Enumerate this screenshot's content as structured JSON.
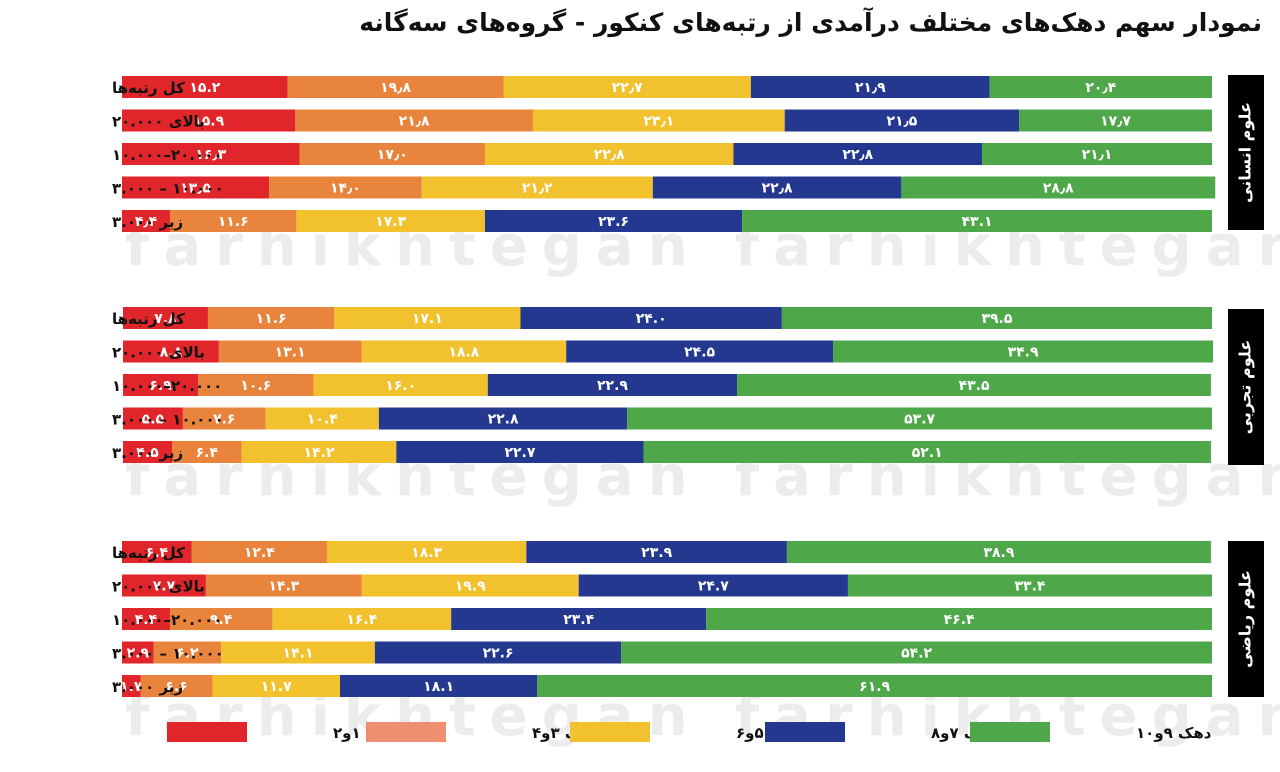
{
  "title": "نمودار سهم دهک‌های مختلف درآمدی از رتبه‌های کنکور - گروه‌های سه‌گانه",
  "watermark": "farhikhtegan",
  "colors": {
    "d12": "#e0262b",
    "d34": "#e8843c",
    "d56": "#f2c12e",
    "d78": "#24388f",
    "d910": "#4ea84a",
    "legend_d34": "#ef8f6f",
    "group_bg": "#000000"
  },
  "legend": [
    "دهک ۱و۲",
    "دهک ۳و۴",
    "دهک ۵و۶",
    "دهک ۷و۸",
    "دهک ۹و۱۰"
  ],
  "chart_data": {
    "type": "bar",
    "stacked": true,
    "orientation": "horizontal",
    "scale": "100%",
    "series_names": [
      "دهک ۱و۲",
      "دهک ۳و۴",
      "دهک ۵و۶",
      "دهک ۷و۸",
      "دهک ۹و۱۰"
    ],
    "groups": [
      {
        "name": "علوم انسانی",
        "rows": [
          {
            "label": "کل رتبه‌ها",
            "values": [
              15.2,
              19.8,
              22.7,
              21.9,
              20.4
            ],
            "texts": [
              "۱۵.۲",
              "۱۹٫۸",
              "۲۲٫۷",
              "۲۱٫۹",
              "۲۰٫۴"
            ]
          },
          {
            "label": "بالای ۲۰.۰۰۰",
            "values": [
              15.9,
              21.8,
              23.1,
              21.5,
              17.7
            ],
            "texts": [
              "۱۵.۹",
              "۲۱٫۸",
              "۲۳٫۱",
              "۲۱٫۵",
              "۱۷٫۷"
            ]
          },
          {
            "label": "۲۰.۰۰۰–۱۰.۰۰۰",
            "values": [
              16.3,
              17.0,
              22.8,
              22.8,
              21.1
            ],
            "texts": [
              "۱۶٫۳",
              "۱۷٫۰",
              "۲۲٫۸",
              "۲۲٫۸",
              "۲۱٫۱"
            ]
          },
          {
            "label": "۱۰.۰۰۰ – ۳.۰۰۰",
            "values": [
              13.5,
              14.0,
              21.2,
              22.8,
              28.8
            ],
            "texts": [
              "۱۳٫۵",
              "۱۴٫۰",
              "۲۱٫۲",
              "۲۲٫۸",
              "۲۸٫۸"
            ]
          },
          {
            "label": "زیر ۳.۰۰۰",
            "values": [
              4.4,
              11.6,
              17.3,
              23.6,
              43.1
            ],
            "texts": [
              "۴٫۴",
              "۱۱.۶",
              "۱۷.۳",
              "۲۳.۶",
              "۴۳.۱"
            ]
          }
        ]
      },
      {
        "name": "علوم تجربی",
        "rows": [
          {
            "label": "کل رتبه‌ها",
            "values": [
              7.8,
              11.6,
              17.1,
              24.0,
              39.5
            ],
            "texts": [
              "۷.۸",
              "۱۱.۶",
              "۱۷.۱",
              "۲۴.۰",
              "۳۹.۵"
            ]
          },
          {
            "label": "بالای ۲۰.۰۰۰",
            "values": [
              8.8,
              13.1,
              18.8,
              24.5,
              34.9
            ],
            "texts": [
              "۸.۸",
              "۱۳.۱",
              "۱۸.۸",
              "۲۴.۵",
              "۳۴.۹"
            ]
          },
          {
            "label": "۲۰.۰۰۰–۱۰.۰۰۰",
            "values": [
              6.9,
              10.6,
              16.0,
              22.9,
              43.5
            ],
            "texts": [
              "۶.۹",
              "۱۰.۶",
              "۱۶.۰",
              "۲۲.۹",
              "۴۳.۵"
            ]
          },
          {
            "label": "۱۰.۰۰۰ – ۳.۰۰۰",
            "values": [
              5.5,
              7.6,
              10.4,
              22.8,
              53.7
            ],
            "texts": [
              "۵.۵",
              "۷.۶",
              "۱۰.۴",
              "۲۲.۸",
              "۵۳.۷"
            ]
          },
          {
            "label": "زیر ۳.۰۰۰",
            "values": [
              4.5,
              6.4,
              14.2,
              22.7,
              52.1
            ],
            "texts": [
              "۴.۵",
              "۶.۴",
              "۱۴.۲",
              "۲۲.۷",
              "۵۲.۱"
            ]
          }
        ]
      },
      {
        "name": "علوم ریاضی",
        "rows": [
          {
            "label": "کل رتبه‌ها",
            "values": [
              6.4,
              12.4,
              18.3,
              23.9,
              38.9
            ],
            "texts": [
              "۶.۴",
              "۱۲.۴",
              "۱۸.۳",
              "۲۳.۹",
              "۳۸.۹"
            ]
          },
          {
            "label": "بالای ۲۰.۰۰۰",
            "values": [
              7.7,
              14.3,
              19.9,
              24.7,
              33.4
            ],
            "texts": [
              "۷.۷",
              "۱۴.۳",
              "۱۹.۹",
              "۲۴.۷",
              "۳۳.۴"
            ]
          },
          {
            "label": "۲۰.۰۰۰–۱۰.۰۰۰",
            "values": [
              4.4,
              9.4,
              16.4,
              23.4,
              46.4
            ],
            "texts": [
              "۴.۴",
              "۹.۴",
              "۱۶.۴",
              "۲۳.۴",
              "۴۶.۴"
            ]
          },
          {
            "label": "۱۰.۰۰۰ – ۳.۰۰۰",
            "values": [
              2.9,
              6.2,
              14.1,
              22.6,
              54.2
            ],
            "texts": [
              "۲.۹",
              "۶.۲",
              "۱۴.۱",
              "۲۲.۶",
              "۵۴.۲"
            ]
          },
          {
            "label": "زیر ۳.۰۰۰",
            "values": [
              1.7,
              6.6,
              11.7,
              18.1,
              61.9
            ],
            "texts": [
              "۱.۷",
              "۶.۶",
              "۱۱.۷",
              "۱۸.۱",
              "۶۱.۹"
            ]
          }
        ]
      }
    ]
  }
}
